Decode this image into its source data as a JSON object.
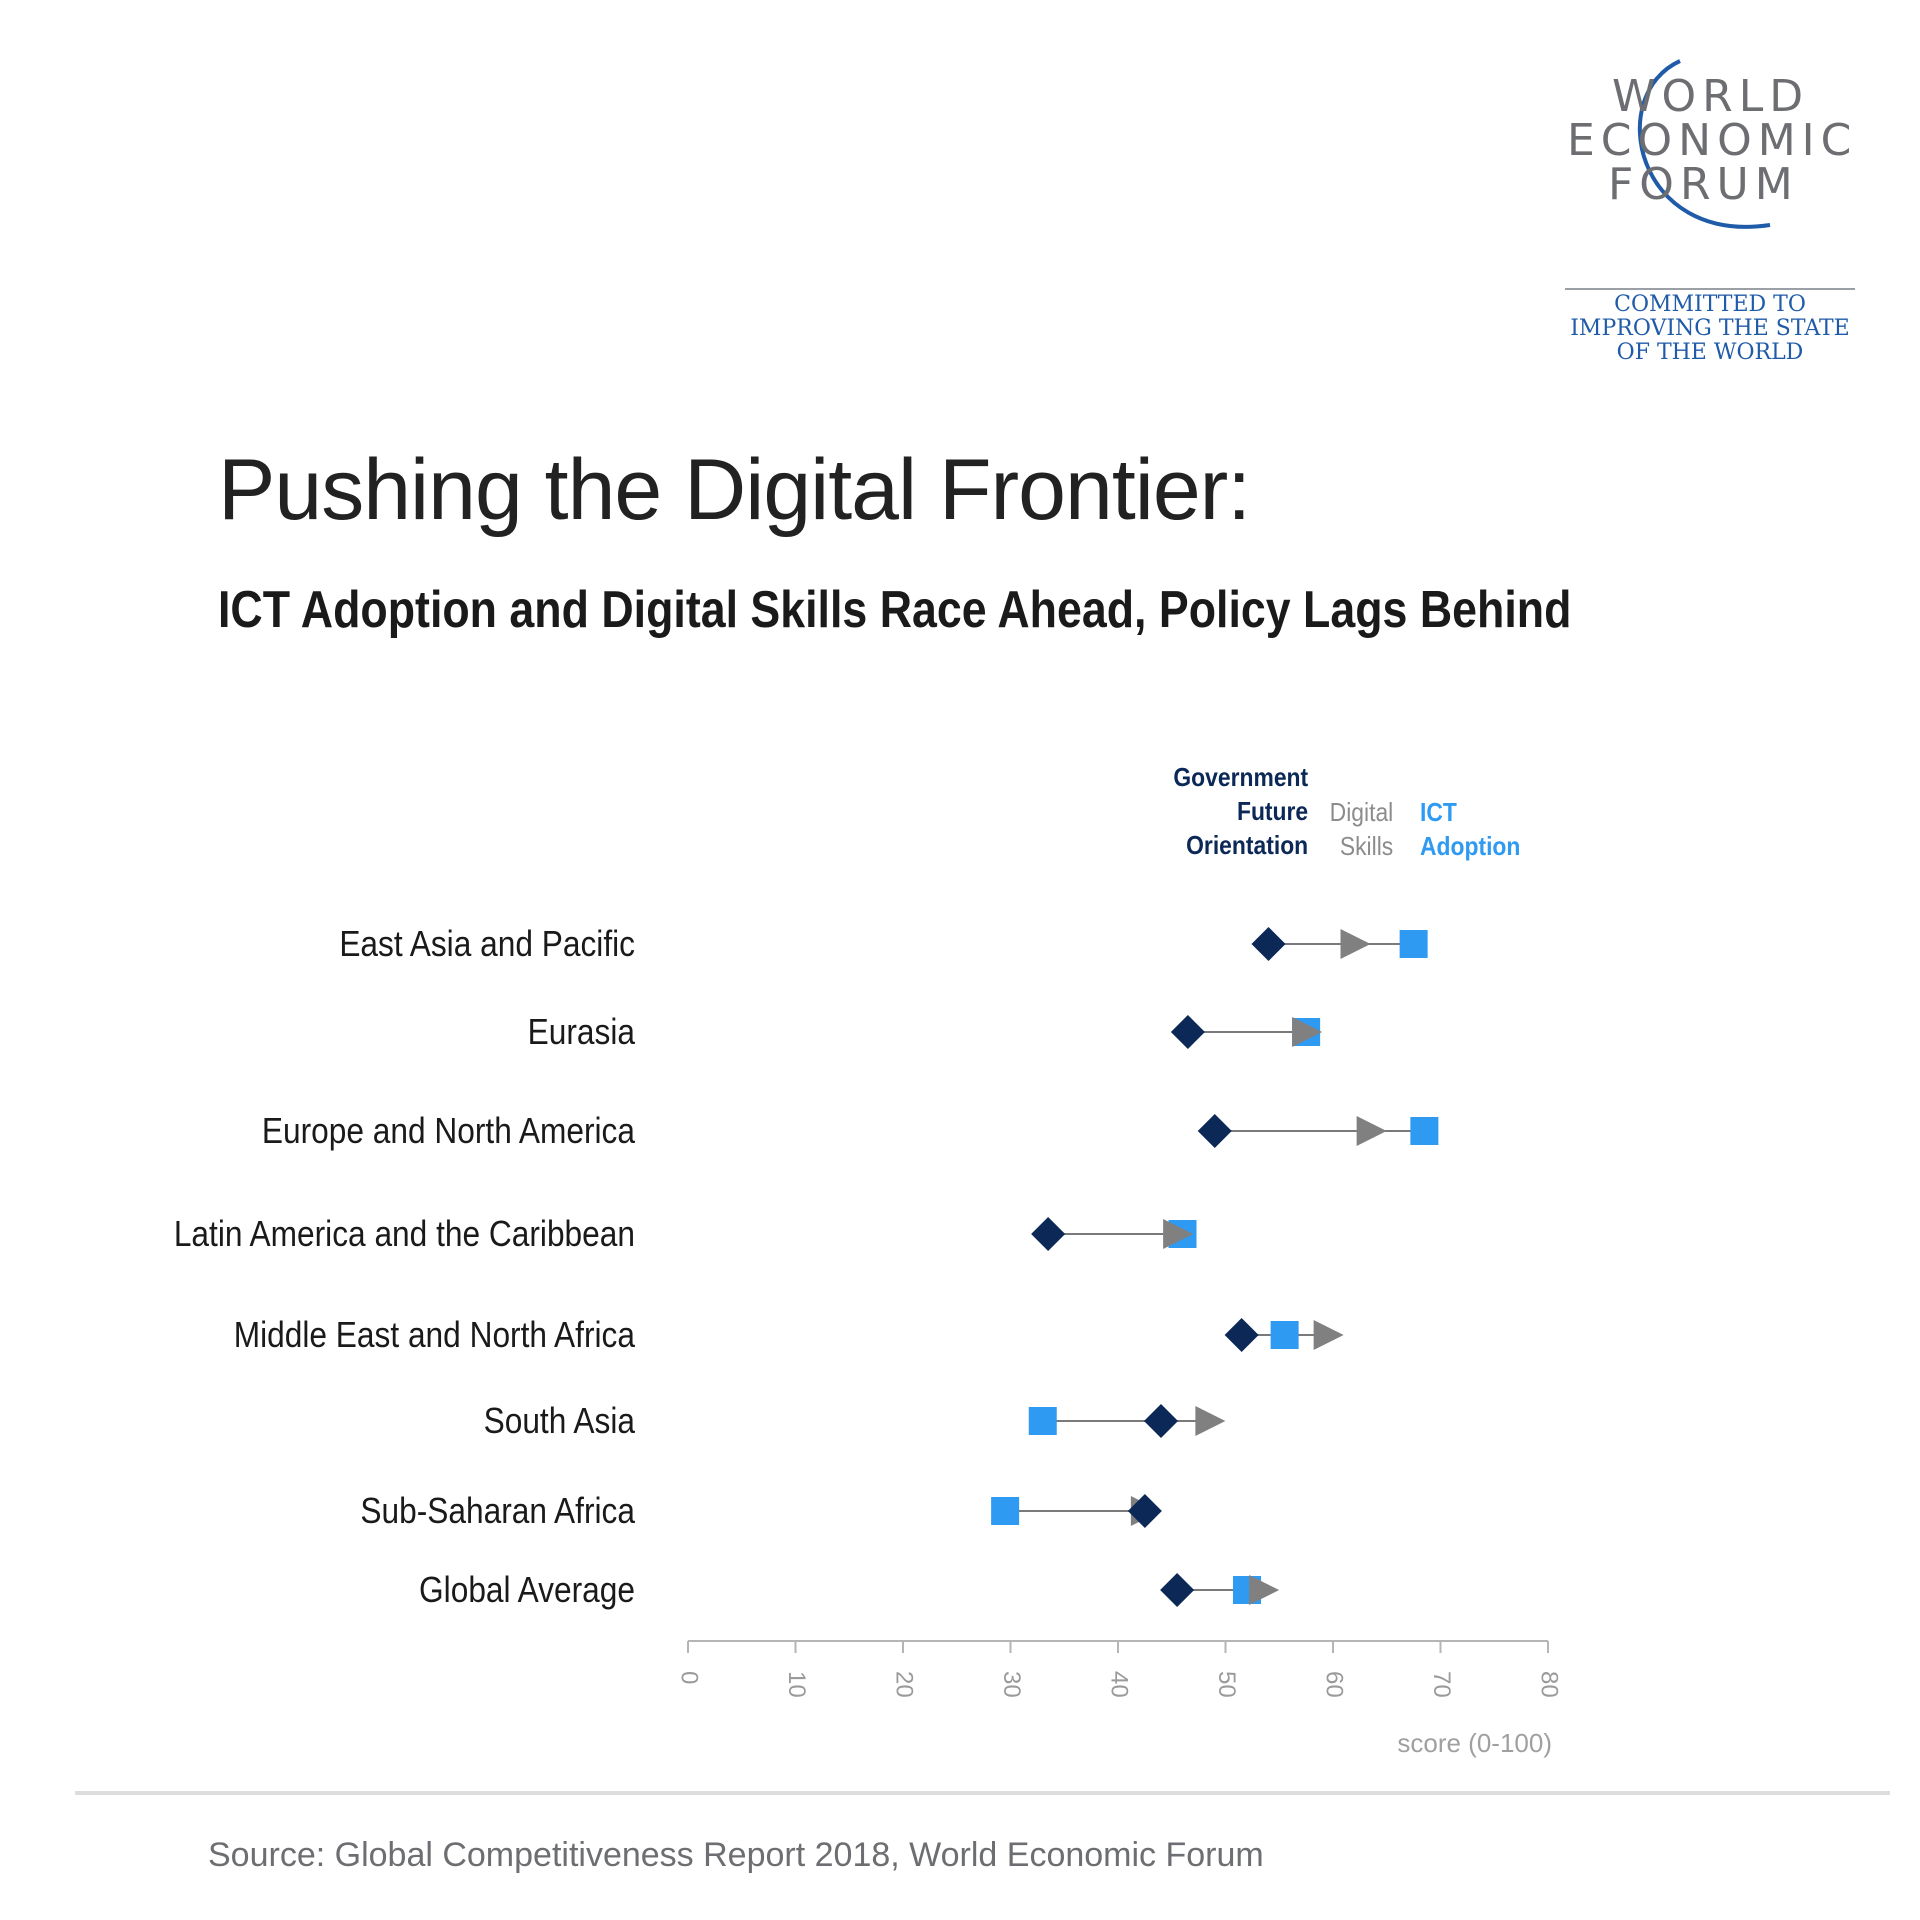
{
  "logo": {
    "lines": [
      "WORLD",
      "ECONOMIC",
      "FORUM"
    ],
    "tagline": [
      "COMMITTED TO",
      "IMPROVING THE STATE",
      "OF THE WORLD"
    ]
  },
  "title": "Pushing the Digital Frontier:",
  "subtitle": "ICT Adoption and Digital Skills Race Ahead, Policy Lags Behind",
  "legend": {
    "government": "Government\nFuture\nOrientation",
    "digital": "Digital\nSkills",
    "ict": "ICT\nAdoption"
  },
  "source": "Source: Global Competitiveness Report 2018, World Economic Forum",
  "colors": {
    "government": "#0b2857",
    "digital": "#808080",
    "ict": "#2e9af2"
  },
  "chart_data": {
    "type": "dot-arrow",
    "categories": [
      "East Asia and Pacific",
      "Eurasia",
      "Europe and North America",
      "Latin America and the Caribbean",
      "Middle East and North Africa",
      "South Asia",
      "Sub-Saharan Africa",
      "Global Average"
    ],
    "series": [
      {
        "name": "Government Future Orientation",
        "marker": "diamond",
        "values": [
          54,
          46.5,
          49,
          33.5,
          51.5,
          44,
          42.5,
          45.5
        ]
      },
      {
        "name": "Digital Skills",
        "marker": "arrow",
        "values": [
          62,
          57.5,
          63.5,
          45.5,
          59.5,
          48.5,
          42.5,
          53.5
        ]
      },
      {
        "name": "ICT Adoption",
        "marker": "square",
        "values": [
          67.5,
          57.5,
          68.5,
          46,
          55.5,
          33,
          29.5,
          52
        ]
      }
    ],
    "xlabel": "score (0-100)",
    "xlim": [
      0,
      80
    ],
    "xticks": [
      0,
      10,
      20,
      30,
      40,
      50,
      60,
      70,
      80
    ],
    "grid": false
  }
}
